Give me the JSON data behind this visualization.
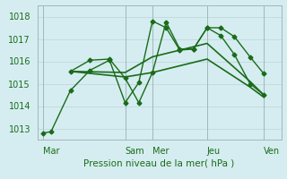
{
  "background_color": "#d5edf0",
  "grid_color": "#c0d8dc",
  "line_color": "#1a6b1a",
  "title": "Pression niveau de la mer( hPa )",
  "tick_fontsize": 7,
  "label_fontsize": 7.5,
  "ylim": [
    1012.5,
    1018.5
  ],
  "yticks": [
    1013,
    1014,
    1015,
    1016,
    1017,
    1018
  ],
  "xtick_labels": [
    "Mar",
    "Sam",
    "Mer",
    "Jeu",
    "Ven"
  ],
  "xtick_positions": [
    0,
    42,
    56,
    84,
    113
  ],
  "xlim": [
    -3,
    122
  ],
  "vlines": [
    0,
    42,
    56,
    84,
    113
  ],
  "series": [
    {
      "x": [
        0,
        4,
        14,
        24,
        34,
        42,
        49,
        56,
        63,
        70,
        77,
        84,
        91,
        98,
        106,
        113
      ],
      "y": [
        1012.8,
        1012.85,
        1014.7,
        1015.6,
        1016.05,
        1014.15,
        1015.05,
        1017.8,
        1017.5,
        1016.5,
        1016.55,
        1017.5,
        1017.5,
        1017.1,
        1016.2,
        1015.45
      ],
      "marker": "D",
      "markersize": 2.5,
      "linewidth": 1.0
    },
    {
      "x": [
        14,
        24,
        34,
        42,
        49,
        56,
        63,
        70,
        77,
        84,
        91,
        98,
        106,
        113
      ],
      "y": [
        1015.55,
        1016.05,
        1016.1,
        1015.25,
        1014.15,
        1015.5,
        1017.75,
        1016.55,
        1016.55,
        1017.5,
        1017.15,
        1016.3,
        1015.0,
        1014.5
      ],
      "marker": "D",
      "markersize": 2.5,
      "linewidth": 1.0
    },
    {
      "x": [
        14,
        42,
        56,
        84,
        106,
        113
      ],
      "y": [
        1015.55,
        1015.5,
        1016.2,
        1016.8,
        1015.1,
        1014.5
      ],
      "marker": null,
      "markersize": 0,
      "linewidth": 1.2
    },
    {
      "x": [
        14,
        42,
        56,
        84,
        106,
        113
      ],
      "y": [
        1015.55,
        1015.3,
        1015.5,
        1016.1,
        1014.85,
        1014.4
      ],
      "marker": null,
      "markersize": 0,
      "linewidth": 1.2
    }
  ]
}
